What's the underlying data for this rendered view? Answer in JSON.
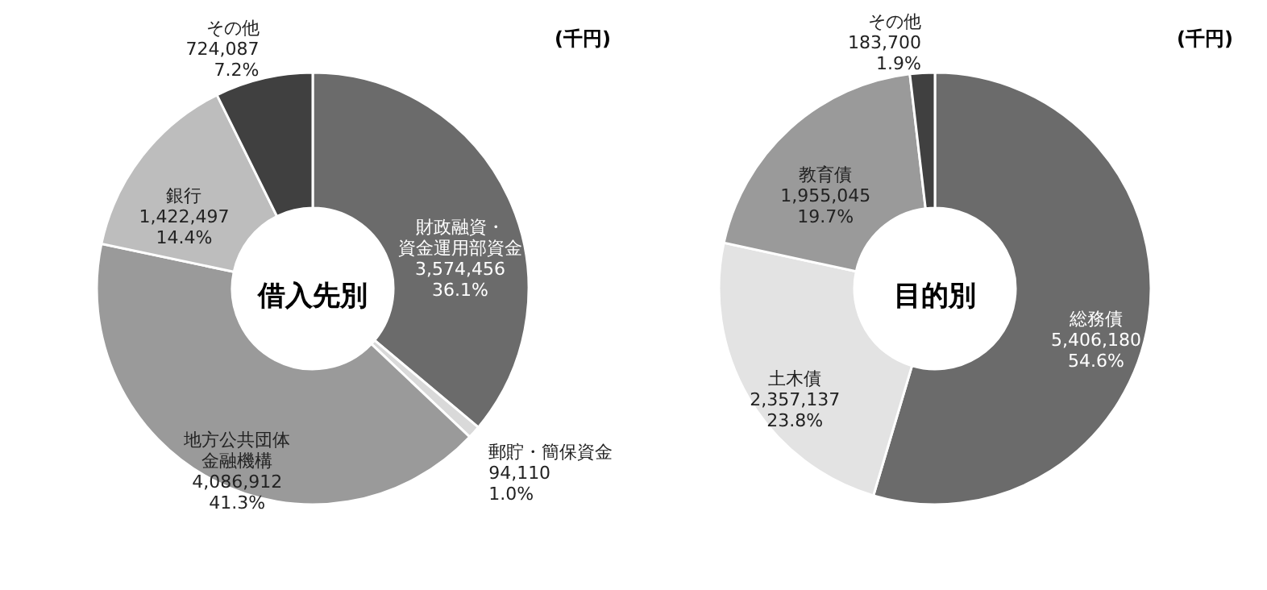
{
  "chart_data": [
    {
      "type": "donut",
      "title": "借入先別",
      "annotations": [
        "(千円)"
      ],
      "categories": [
        "財政融資・資金運用部資金",
        "郵貯・簡保資金",
        "地方公共団体金融機構",
        "銀行",
        "その他"
      ],
      "values": [
        3574456,
        94110,
        4086912,
        1422497,
        724087
      ],
      "colors": [
        "#6b6b6b",
        "#d9d9d9",
        "#9a9a9a",
        "#bdbdbd",
        "#404040"
      ],
      "value_labels": [
        "3,574,456\n36.1%",
        "94,110\n1.0%",
        "4,086,912\n41.3%",
        "1,422,497\n14.4%",
        "724,087\n7.2%"
      ]
    },
    {
      "type": "donut",
      "title": "目的別",
      "annotations": [
        "(千円)"
      ],
      "categories": [
        "総務債",
        "土木債",
        "教育債",
        "その他"
      ],
      "values": [
        5406180,
        2357137,
        1955045,
        183700
      ],
      "colors": [
        "#6b6b6b",
        "#e3e3e3",
        "#9a9a9a",
        "#404040"
      ],
      "value_labels": [
        "5,406,180\n54.6%",
        "2,357,137\n23.8%",
        "1,955,045\n19.7%",
        "183,700\n1.9%"
      ]
    }
  ]
}
